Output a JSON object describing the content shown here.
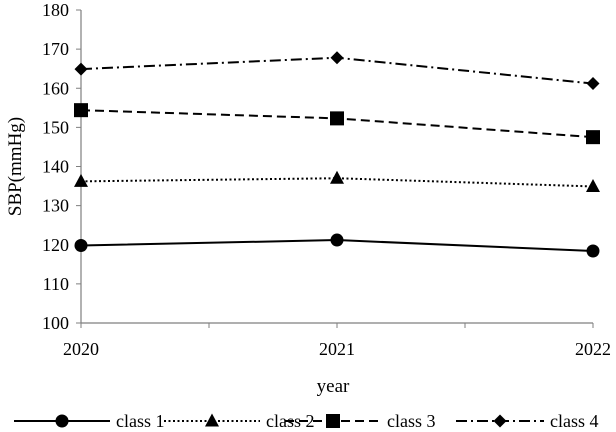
{
  "chart_data": {
    "type": "line",
    "title": "",
    "xlabel": "year",
    "ylabel": "SBP(mmHg)",
    "categories": [
      "2020",
      "2021",
      "2022"
    ],
    "ylim": [
      100,
      180
    ],
    "yticks": [
      100,
      110,
      120,
      130,
      140,
      150,
      160,
      170,
      180
    ],
    "grid": false,
    "legend_position": "bottom",
    "series": [
      {
        "name": "class 1",
        "values": [
          119.8,
          121.2,
          118.4
        ],
        "line_style": "solid",
        "marker": "circle"
      },
      {
        "name": "class 2",
        "values": [
          136.2,
          137.0,
          134.9
        ],
        "line_style": "dotted",
        "marker": "triangle"
      },
      {
        "name": "class 3",
        "values": [
          154.4,
          152.3,
          147.5
        ],
        "line_style": "dashed",
        "marker": "square"
      },
      {
        "name": "class 4",
        "values": [
          164.9,
          167.8,
          161.2
        ],
        "line_style": "dash-dot",
        "marker": "diamond"
      }
    ],
    "colors": {
      "series": "#000000",
      "axis": "#7f7f7f"
    }
  }
}
